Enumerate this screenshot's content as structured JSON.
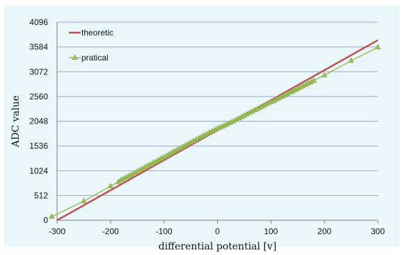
{
  "chart_data": {
    "type": "line",
    "xlabel": "differential  potential  [v]",
    "ylabel": "ADC  value",
    "xlim": [
      -300,
      300
    ],
    "ylim": [
      0,
      4096
    ],
    "xticks": [
      "-300",
      "-200",
      "-100",
      "0",
      "100",
      "200",
      "300"
    ],
    "yticks": [
      "0",
      "512",
      "1024",
      "1536",
      "2048",
      "2560",
      "3072",
      "3584",
      "4096"
    ],
    "grid": "horizontal",
    "legend_position": "top-left",
    "series": [
      {
        "name": "theoretic",
        "style": "line",
        "color": "#c0504d",
        "x": [
          -300,
          300
        ],
        "y": [
          0,
          3725
        ]
      },
      {
        "name": "pratical",
        "style": "line-triangle-markers",
        "color": "#9bbb59",
        "x": [
          -310,
          -250,
          -200,
          -185,
          -180,
          -175,
          -170,
          -165,
          -160,
          -155,
          -150,
          -145,
          -140,
          -135,
          -130,
          -125,
          -120,
          -115,
          -110,
          -105,
          -100,
          -95,
          -90,
          -85,
          -80,
          -75,
          -70,
          -65,
          -60,
          -55,
          -50,
          -45,
          -40,
          -35,
          -30,
          -25,
          -20,
          -15,
          -10,
          -5,
          0,
          5,
          10,
          15,
          20,
          25,
          30,
          35,
          40,
          45,
          50,
          55,
          60,
          65,
          70,
          75,
          80,
          85,
          90,
          95,
          100,
          105,
          110,
          115,
          120,
          125,
          130,
          135,
          140,
          145,
          150,
          155,
          160,
          165,
          170,
          175,
          180,
          200,
          250,
          300
        ],
        "y": [
          75,
          395,
          705,
          795,
          835,
          865,
          895,
          920,
          945,
          980,
          1010,
          1040,
          1070,
          1100,
          1130,
          1160,
          1190,
          1215,
          1245,
          1280,
          1310,
          1335,
          1370,
          1400,
          1430,
          1460,
          1490,
          1520,
          1550,
          1580,
          1610,
          1640,
          1670,
          1700,
          1730,
          1760,
          1785,
          1815,
          1845,
          1870,
          1900,
          1920,
          1945,
          1970,
          2000,
          2025,
          2050,
          2080,
          2110,
          2135,
          2165,
          2195,
          2225,
          2250,
          2280,
          2305,
          2335,
          2360,
          2390,
          2420,
          2445,
          2470,
          2500,
          2525,
          2555,
          2580,
          2610,
          2640,
          2665,
          2695,
          2720,
          2750,
          2780,
          2805,
          2835,
          2860,
          2890,
          3000,
          3300,
          3580
        ]
      }
    ]
  }
}
